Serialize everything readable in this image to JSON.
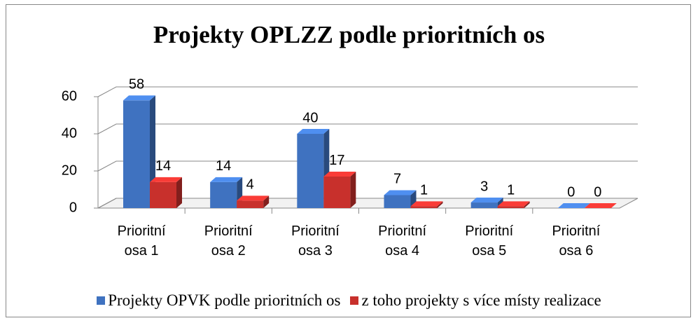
{
  "chart_data": {
    "type": "bar3d",
    "title": "Projekty OPLZZ podle prioritních os",
    "categories": [
      "Prioritní osa 1",
      "Prioritní osa 2",
      "Prioritní osa 3",
      "Prioritní osa 4",
      "Prioritní osa 5",
      "Prioritní osa 6"
    ],
    "series": [
      {
        "name": "Projekty OPVK podle prioritních os",
        "color": "#3f72c0",
        "values": [
          58,
          14,
          40,
          7,
          3,
          0
        ]
      },
      {
        "name": "z toho projekty s více místy realizace",
        "color": "#c8302c",
        "values": [
          14,
          4,
          17,
          1,
          1,
          0
        ]
      }
    ],
    "ylim": [
      0,
      60
    ],
    "yticks": [
      0,
      20,
      40,
      60
    ],
    "grid": true,
    "legend": "bottom"
  }
}
